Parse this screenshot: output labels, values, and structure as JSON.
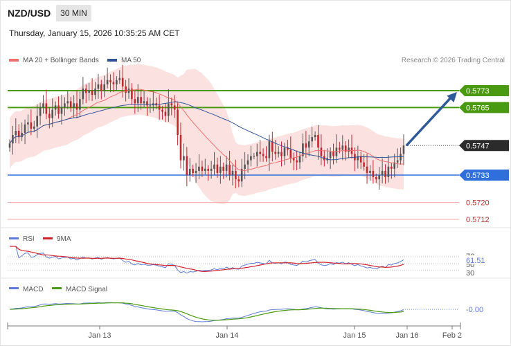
{
  "header": {
    "symbol": "NZD/USD",
    "timeframe": "30 MIN",
    "datetime": "Thursday, January 15, 2026 10:35:25 AM CET"
  },
  "colors": {
    "bull_candle": "#555555",
    "bear_candle": "#c0282e",
    "ma20": "#ef6f6c",
    "ma50": "#2f5597",
    "bollinger_fill": "#fbdcdc",
    "resistance": "#4a9a11",
    "support_primary": "#2e6fdb",
    "support_secondary": "#f5a6a6",
    "arrow": "#2f5a9a",
    "rsi": "#5b7bd6",
    "rsi_ma": "#d1202a",
    "macd": "#5b7bd6",
    "macd_signal": "#4a9a11"
  },
  "chart_data": [
    {
      "type": "candlestick",
      "legend": [
        "MA 20 + Bollinger Bands",
        "MA 50"
      ],
      "legend_placement": "top-left",
      "watermark": "Research © 2026 Trading Central",
      "ylim": [
        0.5708,
        0.5783
      ],
      "x_ticks": [
        "Jan 13",
        "Jan 14",
        "Jan 15",
        "Jan 16",
        "Feb 2"
      ],
      "levels": [
        {
          "label": "0.5773",
          "value": 0.5773,
          "kind": "resistance"
        },
        {
          "label": "0.5765",
          "value": 0.5765,
          "kind": "resistance"
        },
        {
          "label": "0.5747",
          "value": 0.5747,
          "kind": "last"
        },
        {
          "label": "0.5733",
          "value": 0.5733,
          "kind": "support"
        },
        {
          "label": "0.5720",
          "value": 0.572,
          "kind": "support-minor"
        },
        {
          "label": "0.5712",
          "value": 0.5712,
          "kind": "support-minor"
        }
      ],
      "close": [
        0.5748,
        0.5752,
        0.5754,
        0.5751,
        0.5753,
        0.5757,
        0.5758,
        0.5755,
        0.5756,
        0.5761,
        0.5765,
        0.5767,
        0.5762,
        0.576,
        0.5764,
        0.5766,
        0.5762,
        0.5765,
        0.5767,
        0.5768,
        0.5765,
        0.5767,
        0.5764,
        0.5769,
        0.5774,
        0.5772,
        0.5773,
        0.5771,
        0.5774,
        0.5776,
        0.5773,
        0.5776,
        0.5778,
        0.5777,
        0.5776,
        0.5778,
        0.5779,
        0.5775,
        0.5772,
        0.5774,
        0.5769,
        0.5767,
        0.577,
        0.5767,
        0.5768,
        0.5766,
        0.5766,
        0.5767,
        0.5766,
        0.5764,
        0.5763,
        0.5761,
        0.5767,
        0.5766,
        0.5764,
        0.5752,
        0.574,
        0.5742,
        0.5733,
        0.5736,
        0.5734,
        0.5735,
        0.5737,
        0.5735,
        0.5736,
        0.5735,
        0.5736,
        0.5738,
        0.5734,
        0.5737,
        0.5735,
        0.5738,
        0.5733,
        0.5735,
        0.5731,
        0.573,
        0.5736,
        0.5738,
        0.574,
        0.5742,
        0.5742,
        0.5744,
        0.5743,
        0.5742,
        0.5741,
        0.5749,
        0.5744,
        0.5743,
        0.5744,
        0.5742,
        0.5746,
        0.5745,
        0.5741,
        0.574,
        0.5739,
        0.5742,
        0.5748,
        0.5746,
        0.5749,
        0.5751,
        0.5752,
        0.5746,
        0.5742,
        0.574,
        0.5741,
        0.5744,
        0.5742,
        0.5746,
        0.5745,
        0.5747,
        0.5744,
        0.5746,
        0.5743,
        0.574,
        0.5742,
        0.5739,
        0.5737,
        0.5734,
        0.5735,
        0.5732,
        0.5731,
        0.5733,
        0.5735,
        0.5732,
        0.5737,
        0.5736,
        0.5739,
        0.574,
        0.5743,
        0.5747
      ]
    },
    {
      "type": "line",
      "legend": [
        "RSI",
        "9MA"
      ],
      "y_ticks": [
        "70",
        "50",
        "30"
      ],
      "last_value_label": "61.51"
    },
    {
      "type": "line",
      "legend": [
        "MACD",
        "MACD Signal"
      ],
      "last_value_label": "-0.00"
    }
  ]
}
